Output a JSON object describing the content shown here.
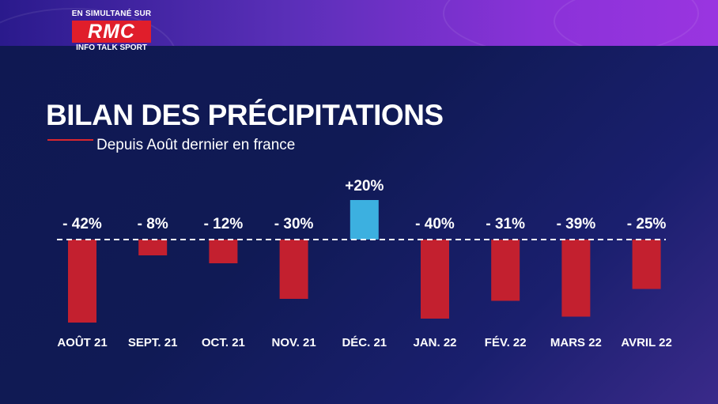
{
  "header": {
    "logo_top": "EN SIMULTANÉ SUR",
    "logo_brand": "RMC",
    "logo_bottom": "INFO TALK SPORT"
  },
  "title": "BILAN DES PRÉCIPITATIONS",
  "subtitle": "Depuis Août dernier en france",
  "colors": {
    "negative_bar": "#c3202f",
    "positive_bar": "#3cb0e0",
    "baseline": "#ffffff",
    "accent_line": "#d9262e"
  },
  "chart_data": {
    "type": "bar",
    "title": "BILAN DES PRÉCIPITATIONS",
    "subtitle": "Depuis Août dernier en france",
    "categories": [
      "AOÛT 21",
      "SEPT. 21",
      "OCT. 21",
      "NOV. 21",
      "DÉC. 21",
      "JAN. 22",
      "FÉV. 22",
      "MARS 22",
      "AVRIL 22"
    ],
    "values": [
      -42,
      -8,
      -12,
      -30,
      20,
      -40,
      -31,
      -39,
      -25
    ],
    "value_labels": [
      "- 42%",
      "- 8%",
      "- 12%",
      "- 30%",
      "+20%",
      "- 40%",
      "- 31%",
      "- 39%",
      "- 25%"
    ],
    "unit": "%",
    "baseline": 0,
    "baseline_style": "dashed",
    "grid": false,
    "legend": "none"
  }
}
